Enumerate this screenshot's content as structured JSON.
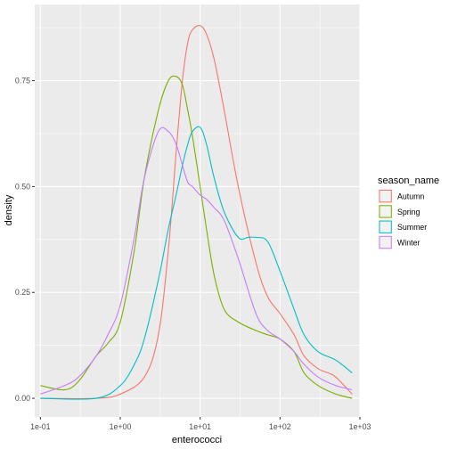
{
  "chart_data": {
    "type": "line",
    "title": "",
    "xlabel": "enterococci",
    "ylabel": "density",
    "x_scale": "log10",
    "xlim": [
      0.085,
      1000
    ],
    "ylim": [
      -0.044,
      0.93
    ],
    "x_ticks": [
      0.1,
      1,
      10,
      100,
      1000
    ],
    "x_tick_labels": [
      "1e-01",
      "1e+00",
      "1e+01",
      "1e+02",
      "1e+03"
    ],
    "y_ticks": [
      0,
      0.25,
      0.5,
      0.75
    ],
    "y_tick_labels": [
      "0.00",
      "0.25",
      "0.50",
      "0.75"
    ],
    "grid": true,
    "legend": {
      "title": "season_name",
      "position": "right"
    },
    "series": [
      {
        "name": "Autumn",
        "color": "#F8766D",
        "x": [
          0.1,
          0.5,
          1,
          2,
          3,
          4,
          5,
          6,
          7,
          8,
          10,
          12,
          15,
          20,
          30,
          50,
          70,
          100,
          150,
          200,
          300,
          400,
          500,
          800
        ],
        "y": [
          0.0,
          0.0,
          0.01,
          0.05,
          0.15,
          0.35,
          0.58,
          0.75,
          0.84,
          0.87,
          0.88,
          0.86,
          0.8,
          0.68,
          0.5,
          0.32,
          0.24,
          0.2,
          0.15,
          0.1,
          0.07,
          0.06,
          0.05,
          0.01
        ]
      },
      {
        "name": "Spring",
        "color": "#7CAE00",
        "x": [
          0.1,
          0.2,
          0.3,
          0.5,
          0.7,
          1,
          1.5,
          2,
          3,
          4,
          5,
          6,
          7,
          8,
          10,
          12,
          15,
          20,
          30,
          50,
          70,
          100,
          150,
          200,
          300,
          500,
          800
        ],
        "y": [
          0.03,
          0.02,
          0.04,
          0.1,
          0.13,
          0.18,
          0.35,
          0.52,
          0.68,
          0.75,
          0.76,
          0.74,
          0.68,
          0.62,
          0.5,
          0.4,
          0.29,
          0.21,
          0.18,
          0.16,
          0.15,
          0.14,
          0.11,
          0.06,
          0.03,
          0.01,
          0.0
        ]
      },
      {
        "name": "Summer",
        "color": "#00BFC4",
        "x": [
          0.1,
          0.5,
          1,
          1.5,
          2,
          3,
          4,
          5,
          6,
          7,
          8,
          10,
          12,
          15,
          20,
          30,
          40,
          50,
          70,
          100,
          150,
          200,
          300,
          500,
          800
        ],
        "y": [
          0.0,
          0.0,
          0.03,
          0.08,
          0.14,
          0.28,
          0.4,
          0.48,
          0.55,
          0.6,
          0.63,
          0.64,
          0.6,
          0.52,
          0.44,
          0.38,
          0.38,
          0.38,
          0.37,
          0.3,
          0.21,
          0.15,
          0.11,
          0.09,
          0.06
        ]
      },
      {
        "name": "Winter",
        "color": "#C77CFF",
        "x": [
          0.1,
          0.2,
          0.3,
          0.5,
          0.7,
          1,
          1.5,
          2,
          3,
          4,
          5,
          6,
          7,
          8,
          10,
          12,
          15,
          20,
          30,
          50,
          70,
          100,
          150,
          200,
          300,
          500,
          800
        ],
        "y": [
          0.01,
          0.03,
          0.05,
          0.1,
          0.15,
          0.22,
          0.38,
          0.52,
          0.63,
          0.63,
          0.6,
          0.55,
          0.51,
          0.5,
          0.48,
          0.47,
          0.45,
          0.42,
          0.33,
          0.2,
          0.16,
          0.14,
          0.11,
          0.08,
          0.05,
          0.03,
          0.02
        ]
      }
    ]
  }
}
